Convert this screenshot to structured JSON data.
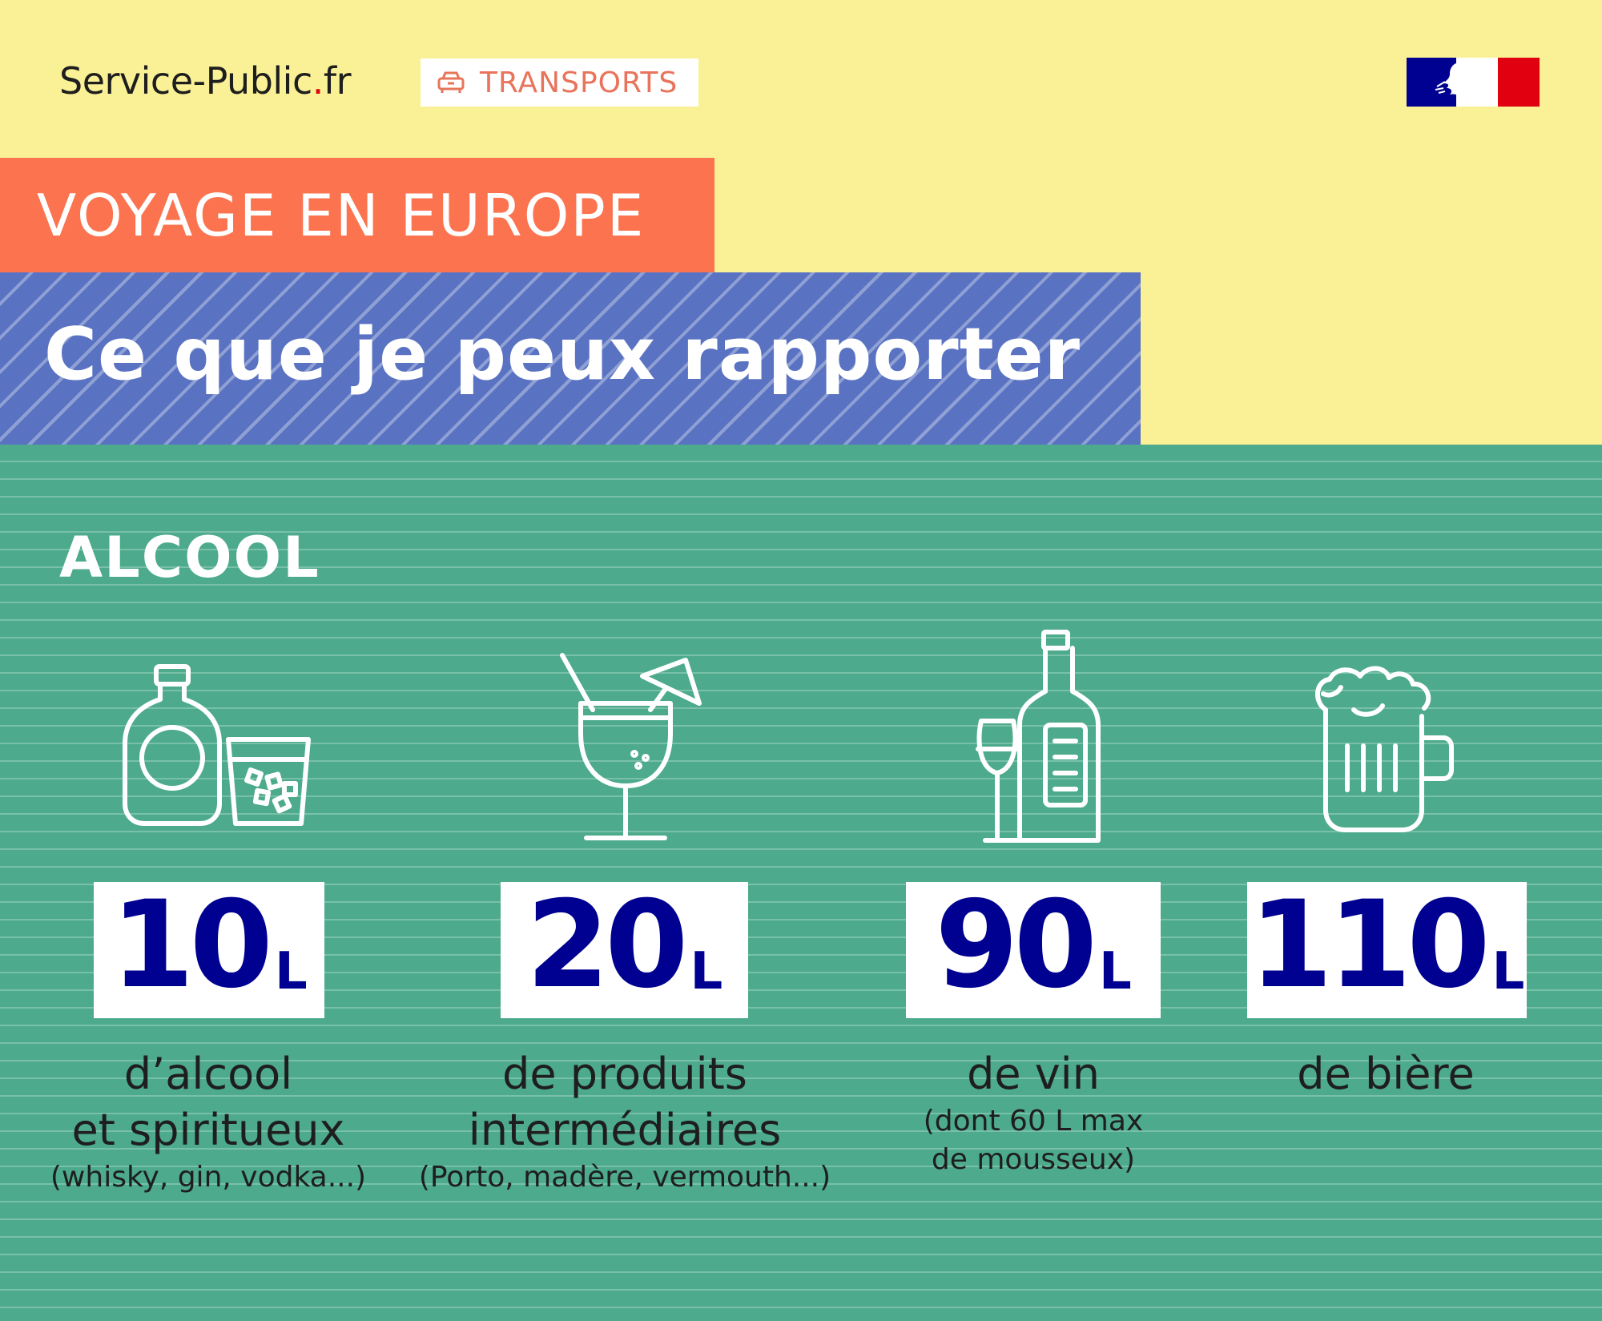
{
  "header": {
    "brand_name": "Service-Public",
    "brand_dot": ".",
    "brand_tld": "fr",
    "category_icon": "car-icon",
    "category_label": "TRANSPORTS",
    "flag_logo": "marianne-logo"
  },
  "banner": {
    "kicker": "VOYAGE EN EUROPE",
    "title": "Ce que je peux rapporter"
  },
  "section": {
    "title": "ALCOOL"
  },
  "items": [
    {
      "icon": "spirits-bottle-glass-icon",
      "value": "10",
      "unit": "L",
      "line1": "d’alcool",
      "line2": "et spiritueux",
      "note": "(whisky, gin, vodka...)",
      "note2": ""
    },
    {
      "icon": "cocktail-glass-icon",
      "value": "20",
      "unit": "L",
      "line1": "de produits",
      "line2": "intermédiaires",
      "note": "(Porto, madère, vermouth...)",
      "note2": ""
    },
    {
      "icon": "wine-bottle-glass-icon",
      "value": "90",
      "unit": "L",
      "line1": "de vin",
      "line2": "",
      "note": "(dont 60 L max",
      "note2": "de mousseux)"
    },
    {
      "icon": "beer-mug-icon",
      "value": "110",
      "unit": "L",
      "line1": "de bière",
      "line2": "",
      "note": "",
      "note2": ""
    }
  ],
  "colors": {
    "background_top": "#faf096",
    "orange_band": "#fb744f",
    "blue_band": "#5a72c2",
    "green_panel": "#4daa8c",
    "number_blue": "#000091",
    "accent_red": "#e1000f"
  }
}
